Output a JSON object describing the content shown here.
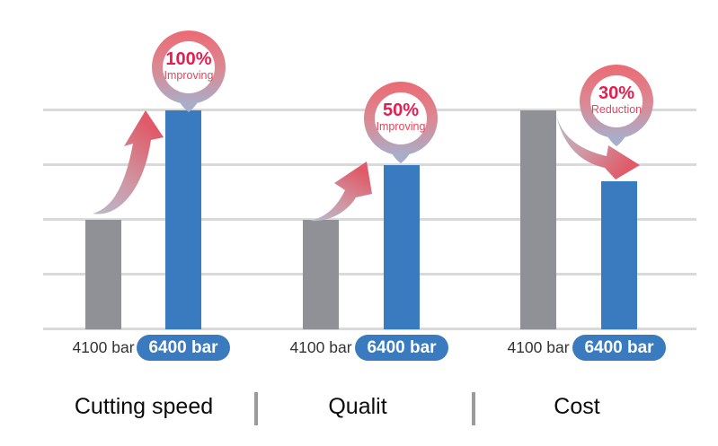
{
  "chart_data": {
    "type": "bar",
    "title": "",
    "xlabel": "",
    "ylabel": "",
    "y_axis_visible": false,
    "grid": true,
    "gridline_count": 5,
    "gridline_spacing_px": 61,
    "categories": [
      "Cutting speed",
      "Qualit",
      "Cost"
    ],
    "series": [
      {
        "name": "4100 bar",
        "values": [
          2,
          2,
          4
        ]
      },
      {
        "name": "6400 bar",
        "values": [
          4,
          3,
          2.7
        ]
      }
    ],
    "value_note": "heights in gridline units; no numeric axis shown",
    "annotations": [
      {
        "category": "Cutting speed",
        "change": "100%",
        "label": "Improving",
        "direction": "up"
      },
      {
        "category": "Qualit",
        "change": "50%",
        "label": "Improving",
        "direction": "up"
      },
      {
        "category": "Cost",
        "change": "30%",
        "label": "Reduction",
        "direction": "down"
      }
    ],
    "legend_position": "labels under each bar"
  },
  "groups": [
    {
      "category": "Cutting speed",
      "baseline_label": "4100 bar",
      "highlight_label": "6400 bar",
      "badge_percent": "100%",
      "badge_text": "Improving"
    },
    {
      "category": "Qualit",
      "baseline_label": "4100 bar",
      "highlight_label": "6400 bar",
      "badge_percent": "50%",
      "badge_text": "Improving"
    },
    {
      "category": "Cost",
      "baseline_label": "4100 bar",
      "highlight_label": "6400 bar",
      "badge_percent": "30%",
      "badge_text": "Reduction"
    }
  ],
  "colors": {
    "bar_gray": "#8f9196",
    "bar_blue": "#3a7abe",
    "pill_blue": "#3a7abe",
    "gridline": "#d9d9d9",
    "badge_percent": "#e51e50",
    "badge_label": "#e8435c",
    "ring_top": "#ec6a73",
    "ring_bottom": "#a8aec9",
    "arrow_gray": "#b7bbce",
    "arrow_red": "#e05a68"
  }
}
